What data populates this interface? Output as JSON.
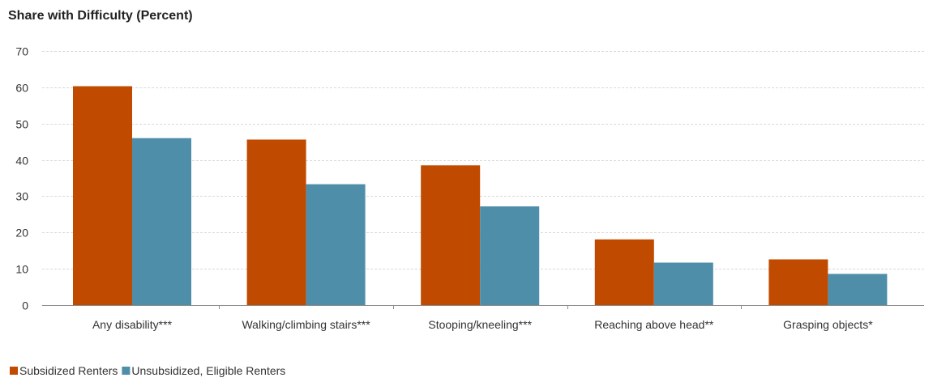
{
  "chart_data": {
    "type": "bar",
    "title": "Share with Difficulty (Percent)",
    "categories": [
      "Any disability***",
      "Walking/climbing stairs***",
      "Stooping/kneeling***",
      "Reaching above head**",
      "Grasping objects*"
    ],
    "series": [
      {
        "name": "Subsidized Renters",
        "color": "#c04a00",
        "values": [
          60.3,
          45.6,
          38.5,
          18.1,
          12.6
        ]
      },
      {
        "name": "Unsubsidized, Eligible Renters",
        "color": "#4e8ea9",
        "values": [
          46.0,
          33.3,
          27.2,
          11.7,
          8.6
        ]
      }
    ],
    "yticks": [
      0,
      10,
      20,
      30,
      40,
      50,
      60,
      70
    ],
    "ylim": [
      0,
      70
    ],
    "grid": true,
    "legend_position": "bottom-left"
  }
}
